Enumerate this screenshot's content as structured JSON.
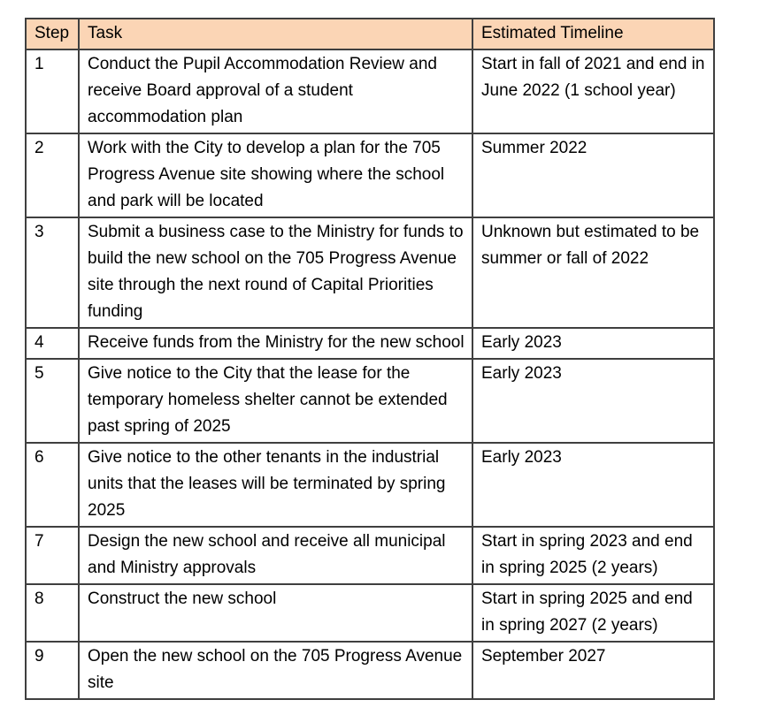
{
  "table": {
    "header_bg": "#FBD5B5",
    "border_color": "#3f3f3f",
    "columns": [
      {
        "key": "step",
        "label": "Step"
      },
      {
        "key": "task",
        "label": "Task"
      },
      {
        "key": "timeline",
        "label": "Estimated Timeline"
      }
    ],
    "rows": [
      {
        "step": "1",
        "task": "Conduct the Pupil Accommodation Review and receive Board approval of a student accommodation plan",
        "timeline": "Start in fall of 2021 and end in June 2022 (1 school year)"
      },
      {
        "step": "2",
        "task": "Work with the City to develop a plan for the 705 Progress Avenue site showing where the school and park will be located",
        "timeline": "Summer 2022"
      },
      {
        "step": "3",
        "task": "Submit a business case to the Ministry for funds to build the new school on the 705 Progress Avenue site through the next round of Capital Priorities funding",
        "timeline": "Unknown but estimated to be summer or fall of 2022"
      },
      {
        "step": "4",
        "task": "Receive funds from the Ministry for the new school",
        "timeline": "Early 2023"
      },
      {
        "step": "5",
        "task": "Give notice to the City that the lease for the temporary homeless shelter cannot be extended past spring of 2025",
        "timeline": "Early 2023"
      },
      {
        "step": "6",
        "task": "Give notice to the other tenants in the industrial units that the leases will be terminated by spring 2025",
        "timeline": "Early 2023"
      },
      {
        "step": "7",
        "task": "Design the new school and receive all municipal and Ministry approvals",
        "timeline": "Start in spring 2023 and end in spring 2025 (2 years)"
      },
      {
        "step": "8",
        "task": "Construct the new school",
        "timeline": "Start in spring 2025 and end in spring 2027 (2 years)"
      },
      {
        "step": "9",
        "task": "Open the new school on the 705 Progress Avenue site",
        "timeline": "September 2027"
      }
    ]
  }
}
